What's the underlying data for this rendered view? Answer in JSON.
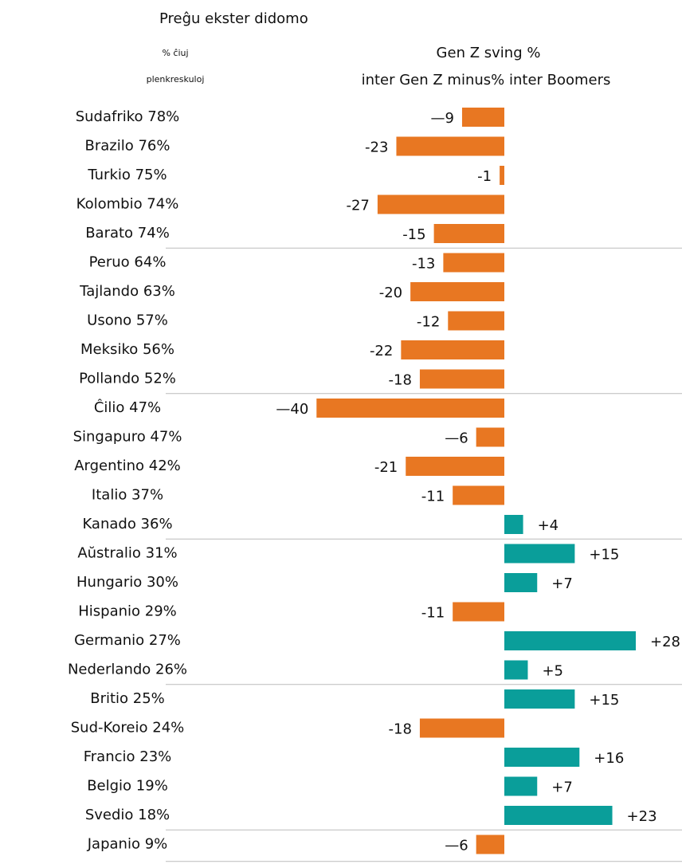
{
  "chart_data": {
    "type": "bar",
    "orientation": "horizontal",
    "title": "Preĝu ekster didomo",
    "left_header": [
      "% ĉiuj",
      "plenkreskuloj"
    ],
    "right_header": [
      "Gen Z sving %",
      "inter Gen Z minus% inter Boomers"
    ],
    "categories": [
      "Sudafriko 78%",
      "Brazilo 76%",
      "Turkio 75%",
      "Kolombio 74%",
      "Barato 74%",
      "Peruo 64%",
      "Tajlando 63%",
      "Usono 57%",
      "Meksiko 56%",
      "Pollando 52%",
      "Ĉilio 47%",
      "Singapuro 47%",
      "Argentino 42%",
      "Italio 37%",
      "Kanado 36%",
      "Aŭstralio 31%",
      "Hungario 30%",
      "Hispanio 29%",
      "Germanio 27%",
      "Nederlando 26%",
      "Britio 25%",
      "Sud-Koreio 24%",
      "Francio 23%",
      "Belgio 19%",
      "Svedio 18%",
      "Japanio 9%"
    ],
    "values": [
      -9,
      -23,
      -1,
      -27,
      -15,
      -13,
      -20,
      -12,
      -22,
      -18,
      -40,
      -6,
      -21,
      -11,
      4,
      15,
      7,
      -11,
      28,
      5,
      15,
      -18,
      16,
      7,
      23,
      -6
    ],
    "value_labels": [
      "—9",
      "-23",
      "-1",
      "-27",
      "-15",
      "-13",
      "-20",
      "-12",
      "-22",
      "-18",
      "—40",
      "—6",
      "-21",
      "-11",
      "+4",
      "+15",
      "+7",
      "-11",
      "+28",
      "+5",
      "+15",
      "-18",
      "+16",
      "+7",
      "+23",
      "—6"
    ],
    "negative_color": "#e87722",
    "positive_color": "#0a9e9a"
  }
}
